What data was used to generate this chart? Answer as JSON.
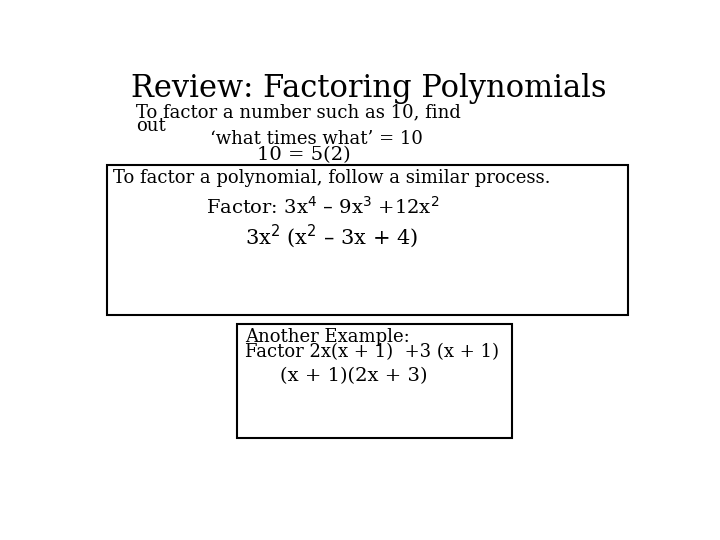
{
  "title": "Review: Factoring Polynomials",
  "title_fontsize": 22,
  "title_font": "DejaVu Serif",
  "bg_color": "#ffffff",
  "text_color": "#000000",
  "line1": "To factor a number such as 10, find",
  "line2": "out",
  "line3": "‘what times what’ = 10",
  "line4": "10 = 5(2)",
  "box1_line1": "To factor a polynomial, follow a similar process.",
  "box1_line2a": "Factor: 3x",
  "box1_line2b": "4",
  "box1_line2c": " – 9x",
  "box1_line2d": "3",
  "box1_line2e": " +12x",
  "box1_line2f": "2",
  "box1_line3a": "3x",
  "box1_line3b": "2",
  "box1_line3c": " (x",
  "box1_line3d": "2",
  "box1_line3e": " – 3x + 4)",
  "box2_line1": "Another Example:",
  "box2_line2": "Factor 2x(x + 1)  +3 (x + 1)",
  "box2_line3": "(x + 1)(2x + 3)",
  "body_fontsize": 13,
  "body_font": "DejaVu Serif"
}
